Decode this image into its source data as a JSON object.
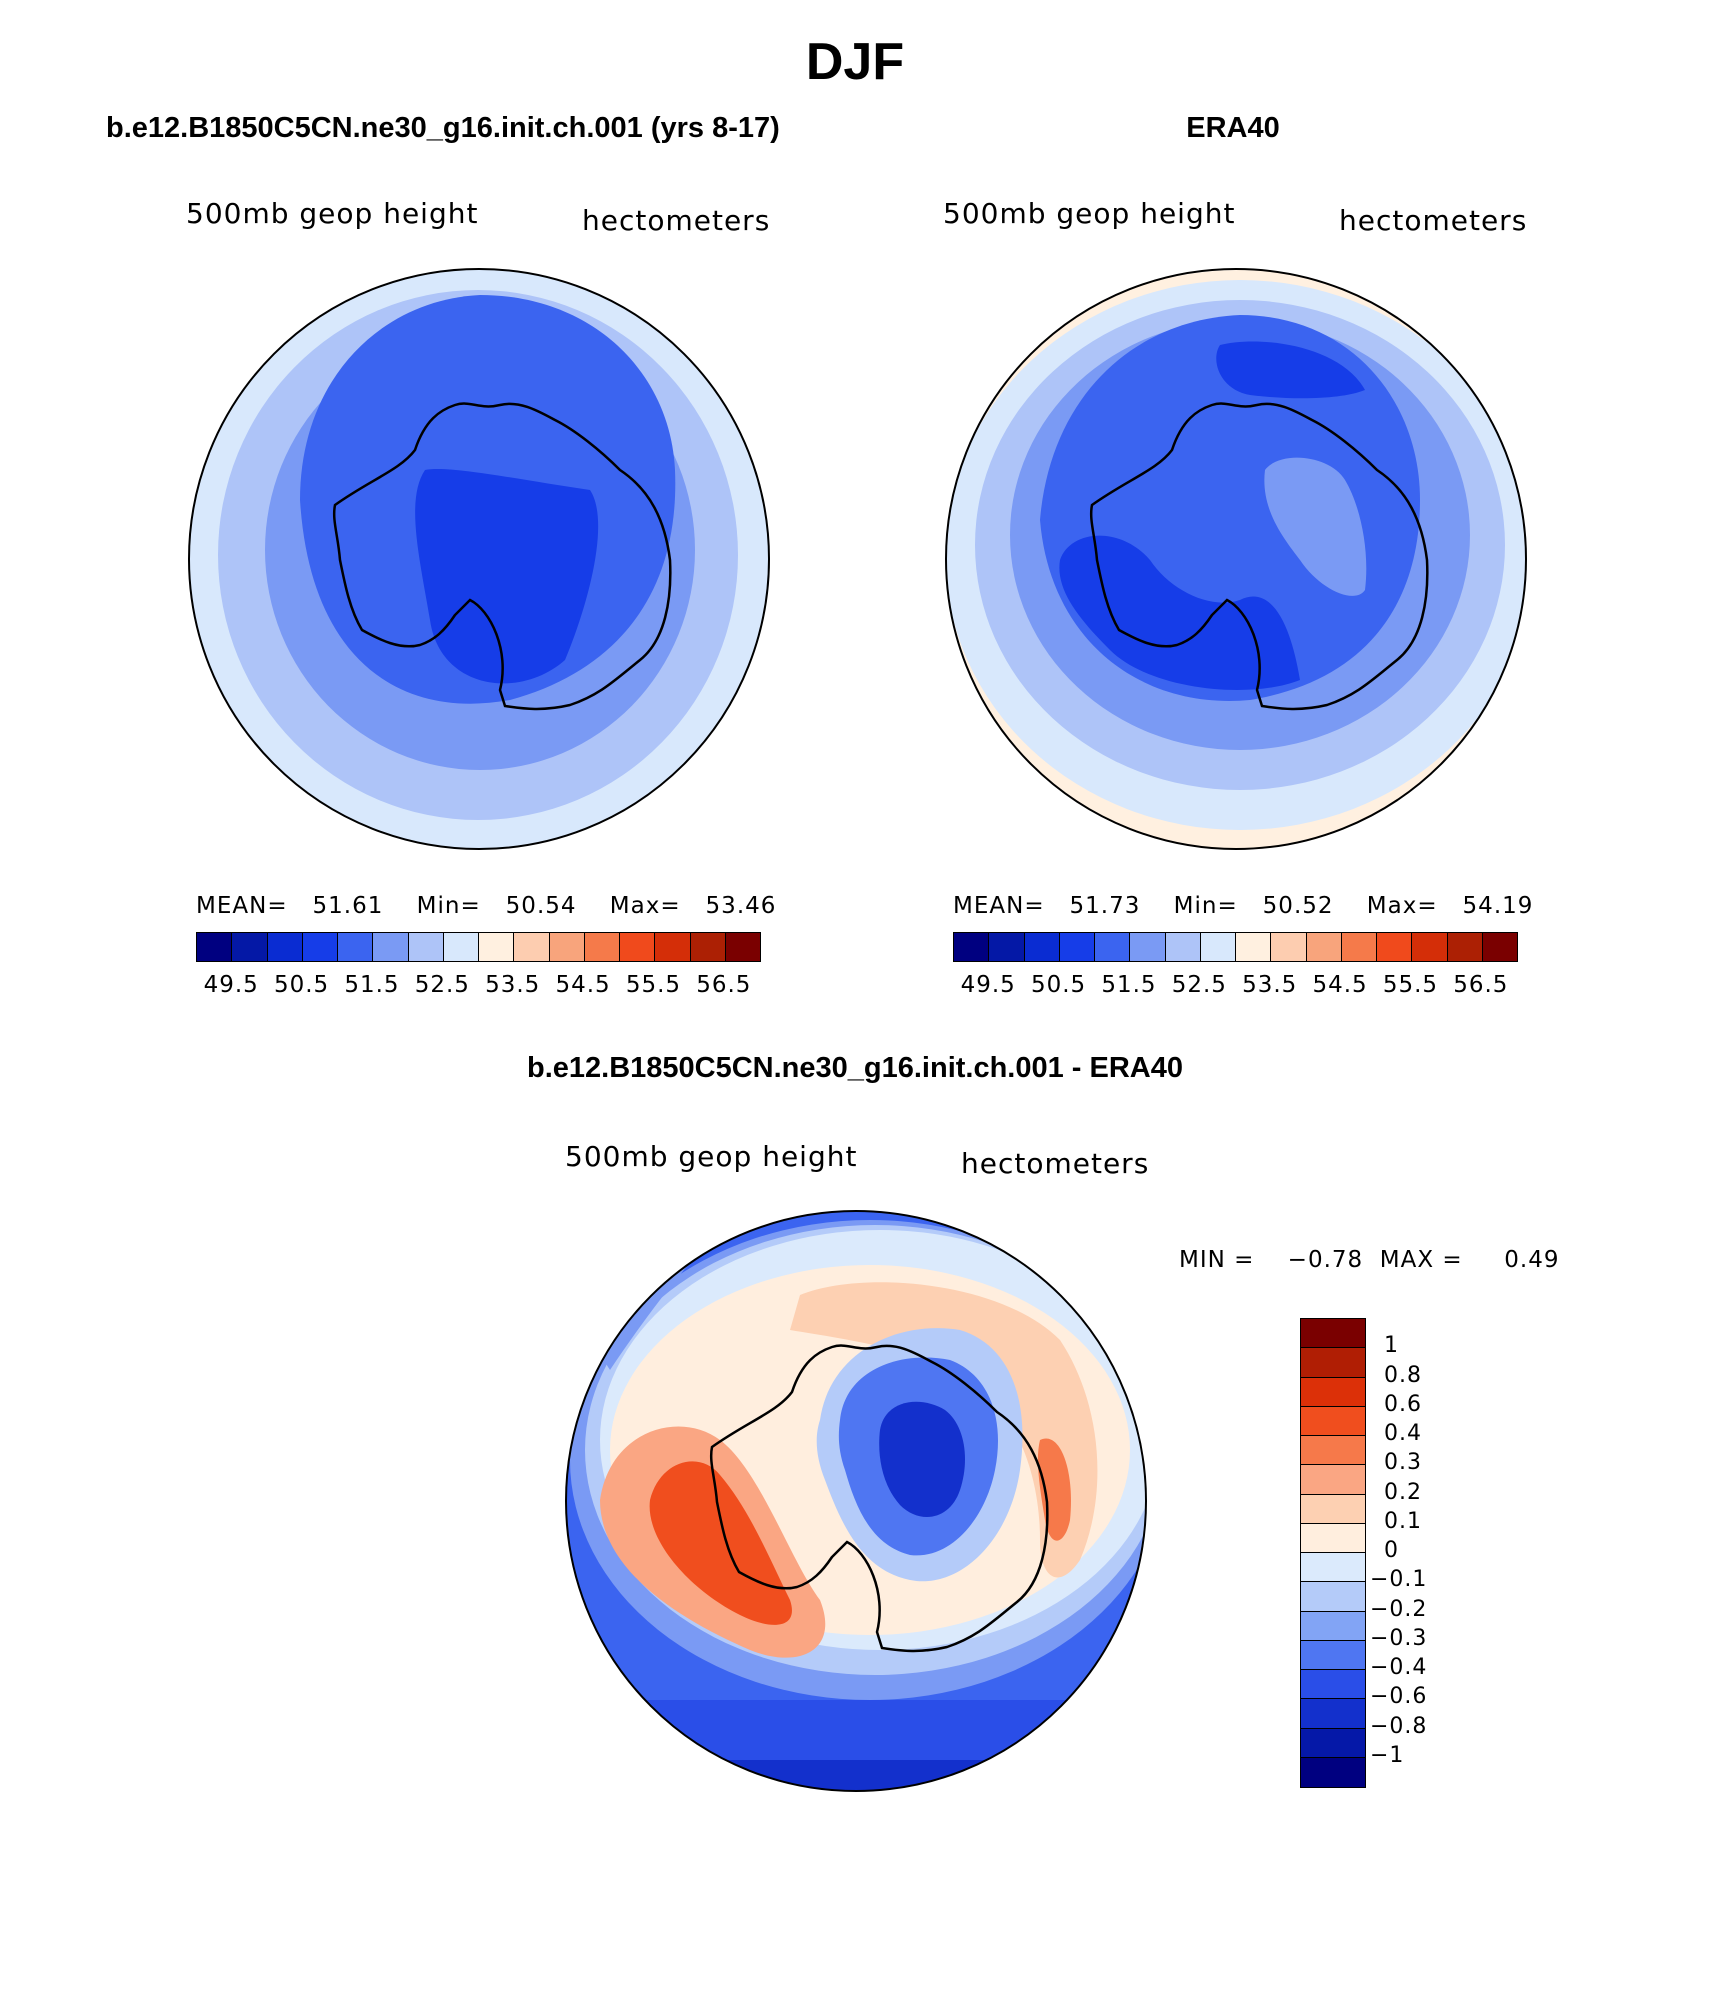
{
  "figure": {
    "title": "DJF",
    "panel1_title": "b.e12.B1850C5CN.ne30_g16.init.ch.001 (yrs 8-17)",
    "panel2_title": "ERA40",
    "panel3_title": "b.e12.B1850C5CN.ne30_g16.init.ch.001 - ERA40"
  },
  "panels": [
    {
      "left_label": "500mb geop height",
      "right_label": "hectometers",
      "stats": {
        "mean_label": "MEAN=",
        "mean": "51.61",
        "min_label": "Min=",
        "min": "50.54",
        "max_label": "Max=",
        "max": "53.46"
      }
    },
    {
      "left_label": "500mb geop height",
      "right_label": "hectometers",
      "stats": {
        "mean_label": "MEAN=",
        "mean": "51.73",
        "min_label": "Min=",
        "min": "50.52",
        "max_label": "Max=",
        "max": "54.19"
      }
    },
    {
      "left_label": "500mb geop height",
      "right_label": "hectometers",
      "stats": {
        "min_label": "MIN =",
        "min": "−0.78",
        "max_label": "MAX =",
        "max": "0.49"
      }
    }
  ],
  "colorbar_abs": {
    "colors": [
      "#000080",
      "#0418a6",
      "#0a2cd2",
      "#163de8",
      "#3b64f0",
      "#7a9af4",
      "#aec4f8",
      "#d8e8fc",
      "#fff0e0",
      "#fdcdb0",
      "#f8a47c",
      "#f57a4a",
      "#f04a1c",
      "#d42e08",
      "#ac2004",
      "#7a0000"
    ],
    "labels": [
      "49.5",
      "50.5",
      "51.5",
      "52.5",
      "53.5",
      "54.5",
      "55.5",
      "56.5"
    ]
  },
  "colorbar_diff": {
    "colors": [
      "#7a0000",
      "#b01e04",
      "#dc3008",
      "#f04e1e",
      "#f6794a",
      "#faa683",
      "#fdd0b2",
      "#ffeede",
      "#dbeafc",
      "#b4cbf9",
      "#82a4f5",
      "#4f76f2",
      "#2a4ee8",
      "#1330cc",
      "#0518a8",
      "#000080"
    ],
    "labels": [
      "1",
      "0.8",
      "0.6",
      "0.4",
      "0.3",
      "0.2",
      "0.1",
      "0",
      "−0.1",
      "−0.2",
      "−0.3",
      "−0.4",
      "−0.6",
      "−0.8",
      "−1"
    ]
  },
  "chart_data": [
    {
      "type": "heatmap",
      "title": "b.e12.B1850C5CN.ne30_g16.init.ch.001 (yrs 8-17)",
      "variable": "500mb geop height",
      "units": "hectometers",
      "projection": "polar stereographic (south pole)",
      "mean": 51.61,
      "min": 50.54,
      "max": 53.46,
      "contour_levels": [
        49.5,
        50.0,
        50.5,
        51.0,
        51.5,
        52.0,
        52.5,
        53.0,
        53.5,
        54.0,
        54.5,
        55.0,
        55.5,
        56.0,
        56.5
      ]
    },
    {
      "type": "heatmap",
      "title": "ERA40",
      "variable": "500mb geop height",
      "units": "hectometers",
      "projection": "polar stereographic (south pole)",
      "mean": 51.73,
      "min": 50.52,
      "max": 54.19,
      "contour_levels": [
        49.5,
        50.0,
        50.5,
        51.0,
        51.5,
        52.0,
        52.5,
        53.0,
        53.5,
        54.0,
        54.5,
        55.0,
        55.5,
        56.0,
        56.5
      ]
    },
    {
      "type": "heatmap",
      "title": "b.e12.B1850C5CN.ne30_g16.init.ch.001 - ERA40",
      "variable": "500mb geop height",
      "units": "hectometers",
      "projection": "polar stereographic (south pole)",
      "min": -0.78,
      "max": 0.49,
      "contour_levels": [
        -1,
        -0.8,
        -0.6,
        -0.4,
        -0.3,
        -0.2,
        -0.1,
        0,
        0.1,
        0.2,
        0.3,
        0.4,
        0.6,
        0.8,
        1
      ]
    }
  ]
}
